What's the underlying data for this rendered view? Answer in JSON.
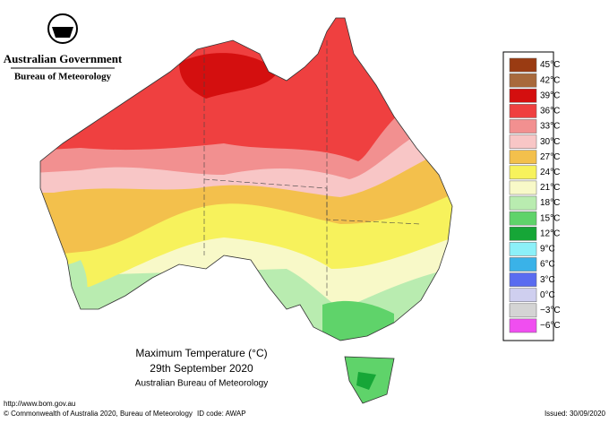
{
  "header": {
    "government": "Australian Government",
    "bureau": "Bureau of Meteorology"
  },
  "legend": [
    {
      "label": "45°C",
      "color": "#9a3b12"
    },
    {
      "label": "42°C",
      "color": "#a8693c"
    },
    {
      "label": "39°C",
      "color": "#d40f0f"
    },
    {
      "label": "36°C",
      "color": "#ef4040"
    },
    {
      "label": "33°C",
      "color": "#f29090"
    },
    {
      "label": "30°C",
      "color": "#f8c6c6"
    },
    {
      "label": "27°C",
      "color": "#f3c04c"
    },
    {
      "label": "24°C",
      "color": "#f7f25c"
    },
    {
      "label": "21°C",
      "color": "#f8f9c8"
    },
    {
      "label": "18°C",
      "color": "#b9ecb0"
    },
    {
      "label": "15°C",
      "color": "#5fd36a"
    },
    {
      "label": "12°C",
      "color": "#16a637"
    },
    {
      "label": "9°C",
      "color": "#8cf0f8"
    },
    {
      "label": "6°C",
      "color": "#3ab2e8"
    },
    {
      "label": "3°C",
      "color": "#5a6cf0"
    },
    {
      "label": "0°C",
      "color": "#cfcfef"
    },
    {
      "label": "−3°C",
      "color": "#d4d4d4"
    },
    {
      "label": "−6°C",
      "color": "#f04ef0"
    }
  ],
  "caption": {
    "title": "Maximum Temperature (°C)",
    "date": "29th September 2020",
    "source": "Australian Bureau of Meteorology"
  },
  "footer": {
    "url": "http://www.bom.gov.au",
    "copyright": "© Commonwealth of Australia 2020, Bureau of Meteorology",
    "id_code": "ID code: AWAP",
    "issued": "Issued: 30/09/2020"
  }
}
